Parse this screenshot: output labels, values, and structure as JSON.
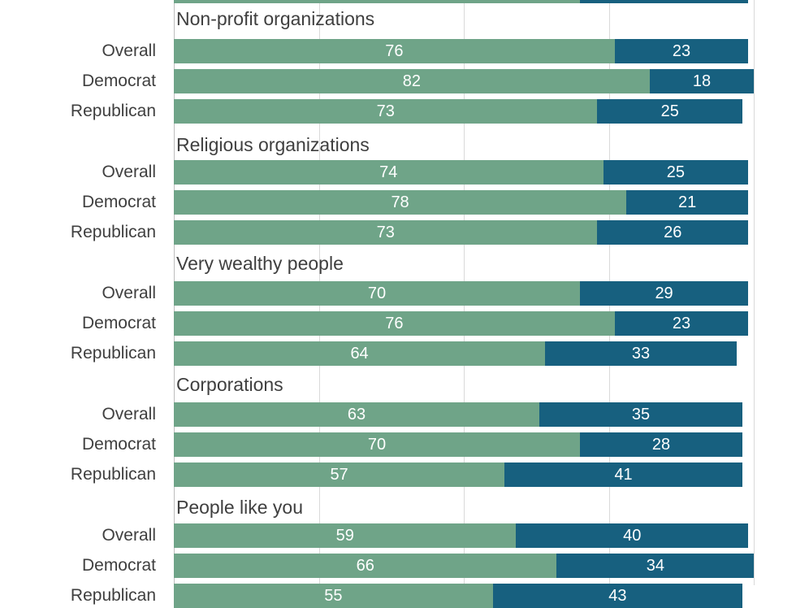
{
  "chart_data": {
    "type": "bar",
    "orientation": "horizontal",
    "stacked": true,
    "colors": {
      "first_segment": "#6fa488",
      "second_segment": "#17607f"
    },
    "xlim": [
      0,
      100
    ],
    "partially_cropped_bar_top": {
      "values": [
        70,
        29
      ]
    },
    "groups": [
      {
        "title": "Non-profit organizations",
        "rows": [
          {
            "label": "Overall",
            "values": [
              76,
              23
            ]
          },
          {
            "label": "Democrat",
            "values": [
              82,
              18
            ]
          },
          {
            "label": "Republican",
            "values": [
              73,
              25
            ]
          }
        ]
      },
      {
        "title": "Religious organizations",
        "rows": [
          {
            "label": "Overall",
            "values": [
              74,
              25
            ]
          },
          {
            "label": "Democrat",
            "values": [
              78,
              21
            ]
          },
          {
            "label": "Republican",
            "values": [
              73,
              26
            ]
          }
        ]
      },
      {
        "title": "Very wealthy people",
        "rows": [
          {
            "label": "Overall",
            "values": [
              70,
              29
            ]
          },
          {
            "label": "Democrat",
            "values": [
              76,
              23
            ]
          },
          {
            "label": "Republican",
            "values": [
              64,
              33
            ]
          }
        ]
      },
      {
        "title": "Corporations",
        "rows": [
          {
            "label": "Overall",
            "values": [
              63,
              35
            ]
          },
          {
            "label": "Democrat",
            "values": [
              70,
              28
            ]
          },
          {
            "label": "Republican",
            "values": [
              57,
              41
            ]
          }
        ]
      },
      {
        "title": "People like you",
        "rows": [
          {
            "label": "Overall",
            "values": [
              59,
              40
            ]
          },
          {
            "label": "Democrat",
            "values": [
              66,
              34
            ]
          },
          {
            "label": "Republican",
            "values": [
              55,
              43
            ]
          }
        ]
      }
    ]
  }
}
